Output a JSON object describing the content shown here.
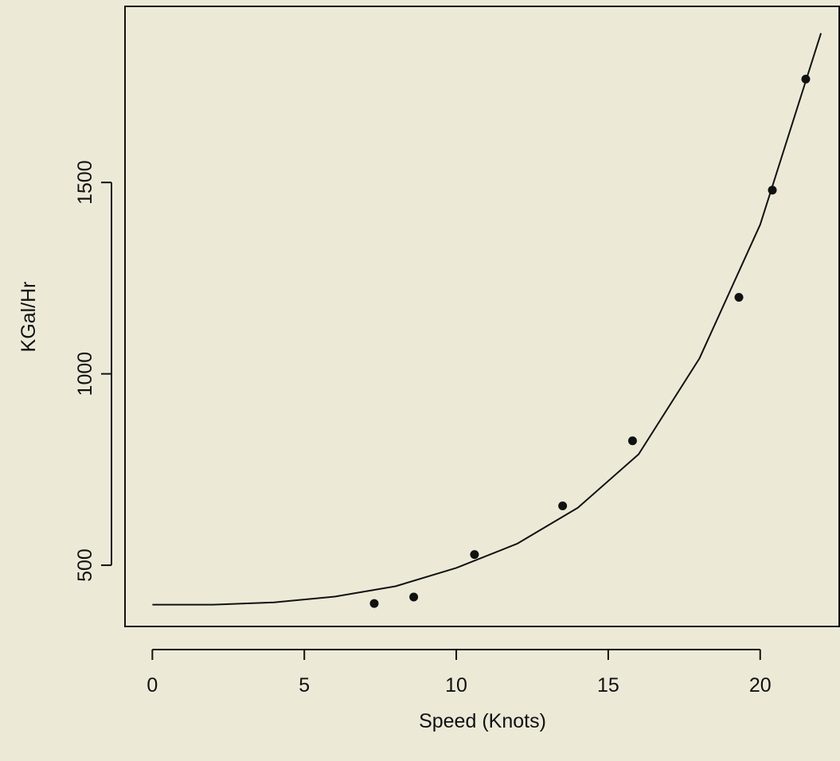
{
  "chart_data": {
    "type": "scatter",
    "xlabel": "Speed (Knots)",
    "ylabel": "KGal/Hr",
    "x_ticks": [
      0,
      5,
      10,
      15,
      20
    ],
    "y_ticks": [
      500,
      1000,
      1500
    ],
    "xlim": [
      -0.9,
      22.6
    ],
    "ylim": [
      340,
      1960
    ],
    "grid": false,
    "legend": "none",
    "series": [
      {
        "kind": "points",
        "x": [
          7.3,
          8.6,
          10.6,
          13.5,
          15.8,
          19.3,
          20.4,
          21.5
        ],
        "y": [
          400,
          417,
          528,
          655,
          825,
          1200,
          1480,
          1770
        ]
      },
      {
        "kind": "fitted-curve",
        "x": [
          0,
          2,
          4,
          6,
          8,
          10,
          12,
          14,
          16,
          18,
          20,
          22
        ],
        "y": [
          397,
          397,
          403,
          418,
          445,
          493,
          556,
          650,
          790,
          1040,
          1390,
          1890
        ]
      }
    ],
    "colors": {
      "ink": "#111111",
      "background": "#ecead7"
    }
  }
}
